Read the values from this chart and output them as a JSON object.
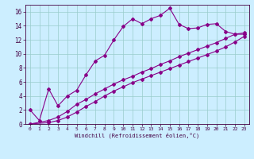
{
  "xlabel": "Windchill (Refroidissement éolien,°C)",
  "bg_color": "#cceeff",
  "line_color": "#880088",
  "xlim": [
    -0.5,
    23.5
  ],
  "ylim": [
    0,
    17
  ],
  "xticks": [
    0,
    1,
    2,
    3,
    4,
    5,
    6,
    7,
    8,
    9,
    10,
    11,
    12,
    13,
    14,
    15,
    16,
    17,
    18,
    19,
    20,
    21,
    22,
    23
  ],
  "yticks": [
    0,
    2,
    4,
    6,
    8,
    10,
    12,
    14,
    16
  ],
  "line1_x": [
    0,
    1,
    2,
    3,
    4,
    5,
    6,
    7,
    8,
    9,
    10,
    11,
    12,
    13,
    14,
    15,
    16,
    17,
    18,
    19,
    20,
    21,
    22,
    23
  ],
  "line1_y": [
    2.0,
    0.5,
    5.0,
    2.6,
    4.0,
    4.8,
    7.0,
    9.0,
    9.8,
    12.0,
    13.9,
    15.0,
    14.3,
    15.0,
    15.5,
    16.5,
    14.2,
    13.6,
    13.7,
    14.2,
    14.3,
    13.2,
    12.8,
    12.8
  ],
  "line2_x": [
    0,
    2,
    3,
    4,
    5,
    6,
    7,
    8,
    9,
    10,
    11,
    12,
    13,
    14,
    15,
    16,
    17,
    18,
    19,
    20,
    21,
    22,
    23
  ],
  "line2_y": [
    0.0,
    0.5,
    1.0,
    1.8,
    2.8,
    3.5,
    4.3,
    5.0,
    5.7,
    6.3,
    6.8,
    7.4,
    7.9,
    8.5,
    9.0,
    9.6,
    10.1,
    10.6,
    11.1,
    11.6,
    12.2,
    12.8,
    13.0
  ],
  "line3_x": [
    0,
    2,
    3,
    4,
    5,
    6,
    7,
    8,
    9,
    10,
    11,
    12,
    13,
    14,
    15,
    16,
    17,
    18,
    19,
    20,
    21,
    22,
    23
  ],
  "line3_y": [
    0.0,
    0.2,
    0.5,
    1.0,
    1.7,
    2.5,
    3.2,
    4.0,
    4.7,
    5.3,
    5.9,
    6.4,
    6.9,
    7.4,
    7.9,
    8.4,
    8.9,
    9.4,
    9.9,
    10.4,
    11.0,
    11.7,
    12.5
  ]
}
